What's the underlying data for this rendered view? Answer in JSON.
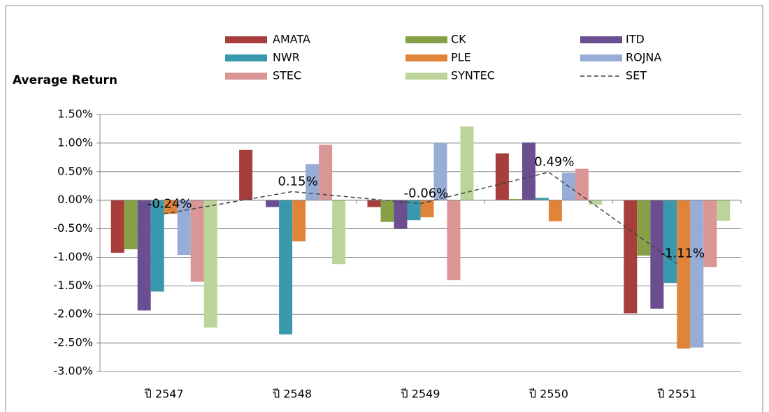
{
  "chart_data": {
    "type": "bar",
    "y_label": "Average Return",
    "categories": [
      "ปี 2547",
      "ปี 2548",
      "ปี 2549",
      "ปี 2550",
      "ปี 2551"
    ],
    "series": [
      {
        "name": "AMATA",
        "color": "#a83e3b",
        "values": [
          -0.92,
          0.88,
          -0.12,
          0.82,
          -1.98
        ]
      },
      {
        "name": "CK",
        "color": "#86a145",
        "values": [
          -0.86,
          0,
          -0.38,
          0.02,
          -0.97
        ]
      },
      {
        "name": "ITD",
        "color": "#6b4e8f",
        "values": [
          -1.93,
          -0.12,
          -0.5,
          1.01,
          -1.9
        ]
      },
      {
        "name": "NWR",
        "color": "#3a98ad",
        "values": [
          -1.6,
          -2.35,
          -0.35,
          0.04,
          -1.45
        ]
      },
      {
        "name": "PLE",
        "color": "#e0843a",
        "values": [
          -0.24,
          -0.72,
          -0.3,
          -0.37,
          -2.6
        ]
      },
      {
        "name": "ROJNA",
        "color": "#97add6",
        "values": [
          -0.96,
          0.63,
          1.0,
          0.48,
          -2.58
        ]
      },
      {
        "name": "STEC",
        "color": "#d99694",
        "values": [
          -1.43,
          0.97,
          -1.4,
          0.55,
          -1.17
        ]
      },
      {
        "name": "SYNTEC",
        "color": "#bcd49a",
        "values": [
          -2.23,
          -1.12,
          1.29,
          -0.08,
          -0.36
        ]
      },
      {
        "name": "SET",
        "type": "line",
        "color": "#444444",
        "values": [
          -0.24,
          0.15,
          -0.06,
          0.49,
          -1.11
        ],
        "value_labels": [
          "-0.24%",
          "0.15%",
          "-0.06%",
          "0.49%",
          "-1.11%"
        ]
      }
    ],
    "ylim": [
      -3.0,
      1.5
    ],
    "yticks": [
      {
        "value": 1.5,
        "label": "1.50%"
      },
      {
        "value": 1.0,
        "label": "1.00%"
      },
      {
        "value": 0.5,
        "label": "0.50%"
      },
      {
        "value": 0,
        "label": "0.00%"
      },
      {
        "value": -0.5,
        "label": "-0.50%"
      },
      {
        "value": -1.0,
        "label": "-1.00%"
      },
      {
        "value": -1.5,
        "label": "-1.50%"
      },
      {
        "value": -2.0,
        "label": "-2.00%"
      },
      {
        "value": -2.5,
        "label": "-2.50%"
      },
      {
        "value": -3.0,
        "label": "-3.00%"
      }
    ],
    "grid": true
  }
}
